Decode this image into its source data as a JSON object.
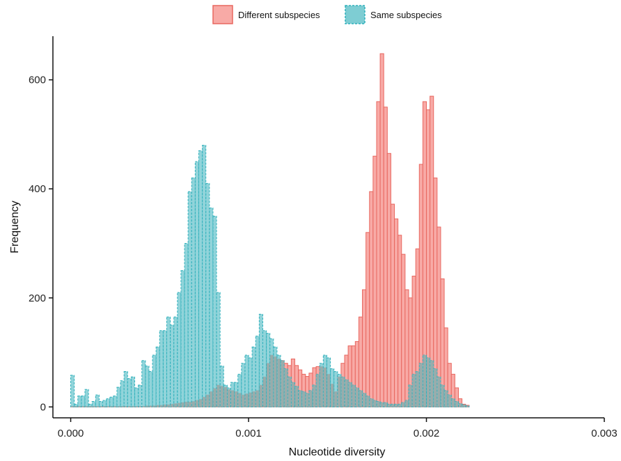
{
  "chart_data": {
    "type": "histogram",
    "xlabel": "Nucleotide diversity",
    "ylabel": "Frequency",
    "xlim": [
      -0.0001,
      0.003
    ],
    "ylim": [
      -20,
      680
    ],
    "x_ticks": [
      0.0,
      0.001,
      0.002,
      0.003
    ],
    "x_tick_labels": [
      "0.000",
      "0.001",
      "0.002",
      "0.003"
    ],
    "y_ticks": [
      0,
      200,
      400,
      600
    ],
    "y_tick_labels": [
      "0",
      "200",
      "400",
      "600"
    ],
    "bin_start": 0.0,
    "bin_width": 2e-05,
    "legend": {
      "placement": "top",
      "entries": [
        "Different subspecies",
        "Same subspecies"
      ]
    },
    "series": [
      {
        "name": "Different subspecies",
        "fill": "#f8aaa6",
        "stroke": "#e8675f",
        "dash": "solid",
        "counts": [
          1,
          1,
          1,
          1,
          1,
          1,
          1,
          1,
          1,
          1,
          1,
          1,
          1,
          1,
          1,
          1,
          1,
          1,
          1,
          1,
          1,
          2,
          2,
          2,
          3,
          3,
          4,
          4,
          5,
          6,
          7,
          8,
          9,
          9,
          10,
          12,
          14,
          18,
          22,
          28,
          34,
          40,
          38,
          36,
          32,
          30,
          28,
          25,
          22,
          24,
          26,
          28,
          30,
          40,
          55,
          80,
          95,
          92,
          88,
          85,
          80,
          76,
          88,
          76,
          68,
          60,
          56,
          62,
          72,
          74,
          74,
          72,
          60,
          42,
          28,
          55,
          80,
          95,
          112,
          112,
          120,
          165,
          215,
          320,
          395,
          460,
          560,
          648,
          550,
          465,
          372,
          345,
          315,
          280,
          215,
          200,
          240,
          290,
          445,
          560,
          545,
          570,
          420,
          330,
          235,
          145,
          80,
          60,
          35,
          15,
          5,
          3
        ]
      },
      {
        "name": "Same subspecies",
        "fill": "#7ecdd3",
        "stroke": "#2fb0bb",
        "dash": "dashed",
        "counts": [
          58,
          5,
          20,
          20,
          32,
          5,
          10,
          22,
          10,
          12,
          15,
          18,
          20,
          36,
          48,
          65,
          52,
          55,
          35,
          40,
          85,
          75,
          65,
          95,
          110,
          140,
          140,
          165,
          150,
          165,
          210,
          250,
          300,
          395,
          420,
          450,
          470,
          480,
          410,
          365,
          350,
          210,
          75,
          40,
          35,
          45,
          45,
          60,
          80,
          95,
          90,
          110,
          130,
          170,
          140,
          135,
          125,
          110,
          95,
          85,
          70,
          55,
          45,
          38,
          30,
          28,
          25,
          30,
          40,
          60,
          80,
          95,
          90,
          70,
          65,
          60,
          55,
          50,
          45,
          40,
          35,
          30,
          25,
          20,
          15,
          12,
          10,
          8,
          8,
          5,
          5,
          5,
          5,
          8,
          12,
          40,
          60,
          65,
          80,
          95,
          90,
          85,
          70,
          55,
          40,
          30,
          22,
          15,
          10,
          6,
          4,
          2
        ]
      }
    ],
    "overlap_color": "#9aa9a7"
  }
}
